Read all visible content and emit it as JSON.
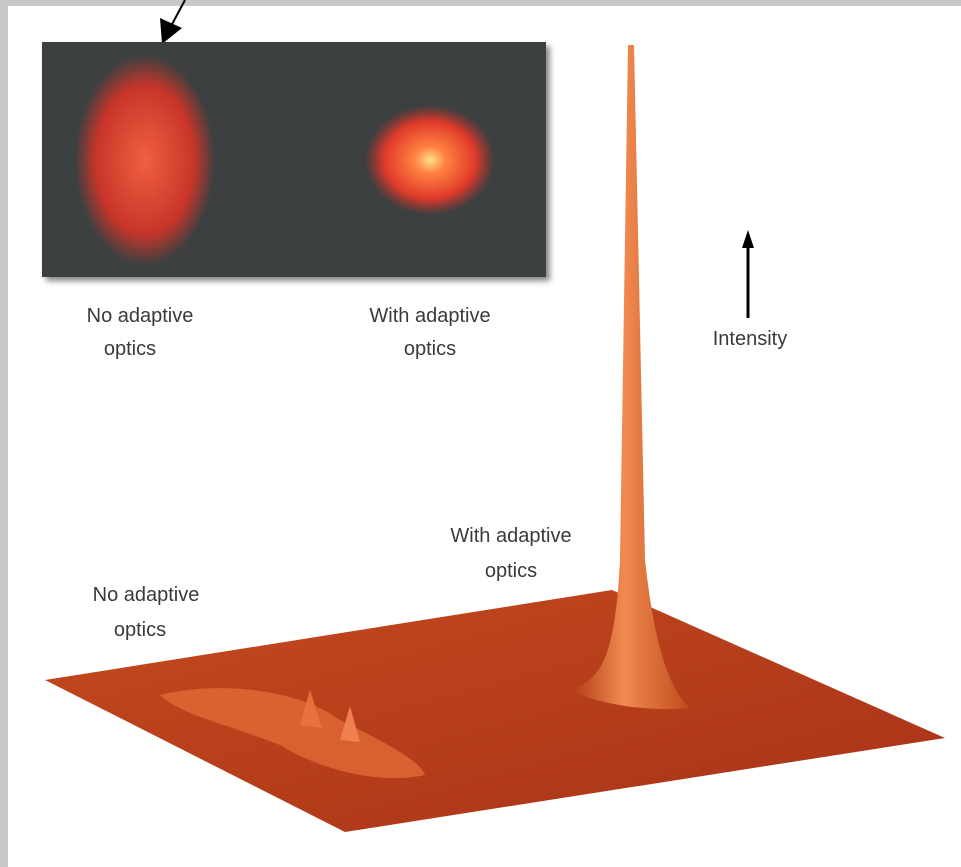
{
  "inset_labels": [
    {
      "lines": [
        "No adaptive",
        "optics"
      ]
    },
    {
      "lines": [
        "With adaptive",
        "optics"
      ]
    }
  ],
  "axis_label": "Intensity",
  "surface_labels": [
    {
      "lines": [
        "No adaptive",
        "optics"
      ]
    },
    {
      "lines": [
        "With adaptive",
        "optics"
      ]
    }
  ]
}
